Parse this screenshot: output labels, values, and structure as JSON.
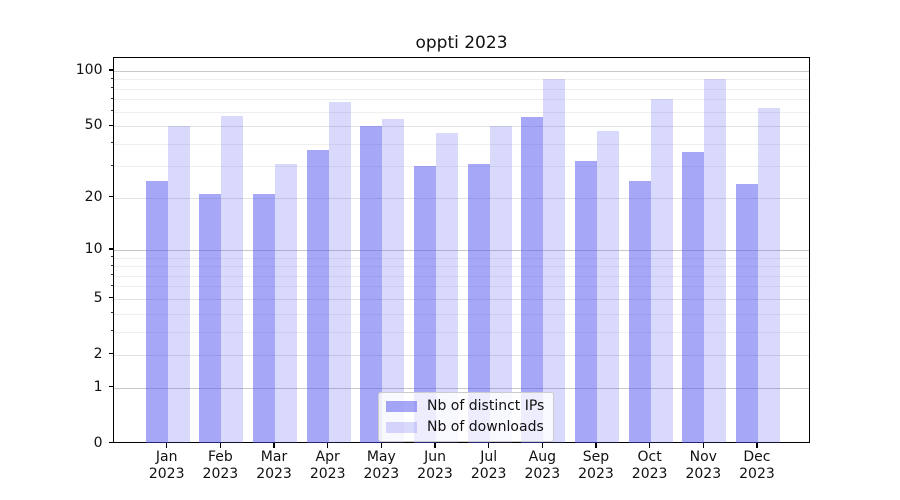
{
  "title": "oppti 2023",
  "chart_data": {
    "type": "bar",
    "title": "oppti 2023",
    "categories": [
      "Jan",
      "Feb",
      "Mar",
      "Apr",
      "May",
      "Jun",
      "Jul",
      "Aug",
      "Sep",
      "Oct",
      "Nov",
      "Dec"
    ],
    "year": "2023",
    "series": [
      {
        "name": "Nb of distinct IPs",
        "color": "rgba(80,80,240,0.50)",
        "values": [
          25,
          21,
          21,
          37,
          50,
          30,
          31,
          56,
          32,
          25,
          36,
          24
        ]
      },
      {
        "name": "Nb of downloads",
        "color": "rgba(80,80,240,0.22)",
        "values": [
          50,
          57,
          31,
          68,
          55,
          46,
          50,
          90,
          47,
          70,
          90,
          63
        ]
      }
    ],
    "xlabel": "",
    "ylabel": "",
    "yscale": "log-like (log(1+v)), linear segment near 0",
    "ylim": [
      0,
      110
    ],
    "yticks_major": [
      0,
      1,
      2,
      5,
      10,
      20,
      50,
      100
    ],
    "yticks_minor": [
      3,
      4,
      6,
      7,
      8,
      9,
      30,
      40,
      60,
      70,
      80,
      90
    ],
    "grid": true,
    "legend_position": "lower center",
    "colors": {
      "grid_decade": "#c8c8c8",
      "grid_major": "#e2e2e2",
      "grid_minor": "#efefef",
      "axis": "#000000",
      "text": "#111111"
    }
  }
}
